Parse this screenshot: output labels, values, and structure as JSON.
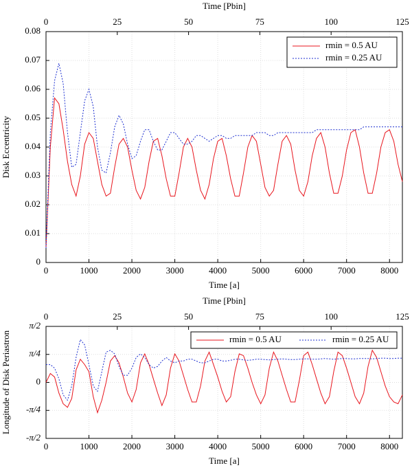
{
  "chart_data": [
    {
      "type": "line",
      "xlabel": "Time [a]",
      "ylabel": "Disk Eccentricity",
      "top_axis": {
        "label": "Time [Pbin]",
        "lim": [
          0,
          125
        ],
        "ticks": [
          0,
          25,
          50,
          75,
          100,
          125
        ]
      },
      "xlim": [
        0,
        8300
      ],
      "xticks": [
        0,
        1000,
        2000,
        3000,
        4000,
        5000,
        6000,
        7000,
        8000
      ],
      "ylim": [
        0,
        0.08
      ],
      "yticks": [
        0,
        0.01,
        0.02,
        0.03,
        0.04,
        0.05,
        0.06,
        0.07,
        0.08
      ],
      "grid": true,
      "legend": "upper right",
      "legend_layout": "vertical",
      "x": [
        0,
        100,
        200,
        300,
        400,
        500,
        600,
        700,
        800,
        900,
        1000,
        1100,
        1200,
        1300,
        1400,
        1500,
        1600,
        1700,
        1800,
        1900,
        2000,
        2100,
        2200,
        2300,
        2400,
        2500,
        2600,
        2700,
        2800,
        2900,
        3000,
        3100,
        3200,
        3300,
        3400,
        3500,
        3600,
        3700,
        3800,
        3900,
        4000,
        4100,
        4200,
        4300,
        4400,
        4500,
        4600,
        4700,
        4800,
        4900,
        5000,
        5100,
        5200,
        5300,
        5400,
        5500,
        5600,
        5700,
        5800,
        5900,
        6000,
        6100,
        6200,
        6300,
        6400,
        6500,
        6600,
        6700,
        6800,
        6900,
        7000,
        7100,
        7200,
        7300,
        7400,
        7500,
        7600,
        7700,
        7800,
        7900,
        8000,
        8100,
        8200,
        8300
      ],
      "series": [
        {
          "name": "rmin = 0.5 AU",
          "color": "#e8141c",
          "linestyle": "solid",
          "values": [
            0.005,
            0.04,
            0.057,
            0.055,
            0.046,
            0.035,
            0.027,
            0.023,
            0.03,
            0.041,
            0.045,
            0.043,
            0.035,
            0.027,
            0.023,
            0.024,
            0.033,
            0.041,
            0.043,
            0.04,
            0.032,
            0.025,
            0.022,
            0.026,
            0.035,
            0.042,
            0.043,
            0.037,
            0.029,
            0.023,
            0.023,
            0.031,
            0.04,
            0.043,
            0.04,
            0.032,
            0.025,
            0.022,
            0.027,
            0.036,
            0.042,
            0.043,
            0.037,
            0.029,
            0.023,
            0.023,
            0.031,
            0.04,
            0.044,
            0.042,
            0.034,
            0.026,
            0.023,
            0.025,
            0.034,
            0.042,
            0.044,
            0.041,
            0.032,
            0.025,
            0.023,
            0.028,
            0.037,
            0.043,
            0.045,
            0.04,
            0.031,
            0.024,
            0.024,
            0.03,
            0.039,
            0.045,
            0.046,
            0.04,
            0.031,
            0.024,
            0.024,
            0.031,
            0.04,
            0.045,
            0.046,
            0.042,
            0.034,
            0.028
          ]
        },
        {
          "name": "rmin = 0.25 AU",
          "color": "#1c2fd0",
          "linestyle": "dotted",
          "values": [
            0.005,
            0.045,
            0.063,
            0.069,
            0.062,
            0.045,
            0.033,
            0.034,
            0.045,
            0.056,
            0.06,
            0.054,
            0.04,
            0.032,
            0.031,
            0.038,
            0.047,
            0.051,
            0.048,
            0.041,
            0.036,
            0.037,
            0.042,
            0.046,
            0.046,
            0.042,
            0.039,
            0.039,
            0.042,
            0.045,
            0.045,
            0.043,
            0.041,
            0.041,
            0.042,
            0.044,
            0.044,
            0.043,
            0.042,
            0.043,
            0.044,
            0.044,
            0.043,
            0.043,
            0.044,
            0.044,
            0.044,
            0.044,
            0.044,
            0.045,
            0.045,
            0.045,
            0.044,
            0.044,
            0.045,
            0.045,
            0.045,
            0.045,
            0.045,
            0.045,
            0.045,
            0.045,
            0.045,
            0.046,
            0.046,
            0.046,
            0.046,
            0.046,
            0.046,
            0.046,
            0.046,
            0.046,
            0.046,
            0.046,
            0.047,
            0.047,
            0.047,
            0.047,
            0.047,
            0.047,
            0.047,
            0.047,
            0.047,
            0.047
          ]
        }
      ]
    },
    {
      "type": "line",
      "xlabel": "Time [a]",
      "ylabel": "Longitude of Disk Periastron",
      "top_axis": {
        "label": "Time [Pbin]",
        "lim": [
          0,
          125
        ],
        "ticks": [
          0,
          25,
          50,
          75,
          100,
          125
        ]
      },
      "xlim": [
        0,
        8300
      ],
      "xticks": [
        0,
        1000,
        2000,
        3000,
        4000,
        5000,
        6000,
        7000,
        8000
      ],
      "ylim": [
        -1.5708,
        1.5708
      ],
      "yticks": [
        {
          "value": -1.5708,
          "label": "-π/2"
        },
        {
          "value": -0.7854,
          "label": "-π/4"
        },
        0,
        {
          "value": 0.7854,
          "label": "π/4"
        },
        {
          "value": 1.5708,
          "label": "π/2"
        }
      ],
      "grid": true,
      "legend": "upper right",
      "legend_layout": "horizontal",
      "x": [
        0,
        100,
        200,
        300,
        400,
        500,
        600,
        700,
        800,
        900,
        1000,
        1100,
        1200,
        1300,
        1400,
        1500,
        1600,
        1700,
        1800,
        1900,
        2000,
        2100,
        2200,
        2300,
        2400,
        2500,
        2600,
        2700,
        2800,
        2900,
        3000,
        3100,
        3200,
        3300,
        3400,
        3500,
        3600,
        3700,
        3800,
        3900,
        4000,
        4100,
        4200,
        4300,
        4400,
        4500,
        4600,
        4700,
        4800,
        4900,
        5000,
        5100,
        5200,
        5300,
        5400,
        5500,
        5600,
        5700,
        5800,
        5900,
        6000,
        6100,
        6200,
        6300,
        6400,
        6500,
        6600,
        6700,
        6800,
        6900,
        7000,
        7100,
        7200,
        7300,
        7400,
        7500,
        7600,
        7700,
        7800,
        7900,
        8000,
        8100,
        8200,
        8300
      ],
      "series": [
        {
          "name": "rmin = 0.5 AU",
          "color": "#e8141c",
          "linestyle": "solid",
          "values": [
            0.0,
            0.25,
            0.15,
            -0.3,
            -0.6,
            -0.7,
            -0.45,
            0.35,
            0.65,
            0.5,
            0.3,
            -0.4,
            -0.85,
            -0.5,
            0.0,
            0.6,
            0.75,
            0.55,
            0.15,
            -0.3,
            -0.55,
            -0.2,
            0.55,
            0.8,
            0.5,
            0.1,
            -0.3,
            -0.65,
            -0.35,
            0.4,
            0.8,
            0.6,
            0.2,
            -0.2,
            -0.55,
            -0.55,
            -0.1,
            0.6,
            0.85,
            0.5,
            0.15,
            -0.25,
            -0.55,
            -0.4,
            0.3,
            0.8,
            0.75,
            0.4,
            0.0,
            -0.35,
            -0.6,
            -0.35,
            0.4,
            0.85,
            0.6,
            0.2,
            -0.2,
            -0.55,
            -0.55,
            0.05,
            0.75,
            0.85,
            0.5,
            0.1,
            -0.3,
            -0.6,
            -0.4,
            0.3,
            0.85,
            0.75,
            0.4,
            0.0,
            -0.4,
            -0.6,
            -0.3,
            0.45,
            0.9,
            0.7,
            0.3,
            -0.1,
            -0.4,
            -0.55,
            -0.6,
            -0.35
          ]
        },
        {
          "name": "rmin = 0.25 AU",
          "color": "#1c2fd0",
          "linestyle": "dotted",
          "values": [
            0.5,
            0.5,
            0.4,
            0.1,
            -0.35,
            -0.5,
            -0.1,
            0.7,
            1.2,
            1.05,
            0.5,
            -0.1,
            -0.25,
            0.3,
            0.85,
            0.9,
            0.8,
            0.45,
            0.2,
            0.2,
            0.4,
            0.7,
            0.8,
            0.7,
            0.5,
            0.4,
            0.45,
            0.6,
            0.7,
            0.6,
            0.55,
            0.6,
            0.6,
            0.65,
            0.65,
            0.6,
            0.55,
            0.55,
            0.6,
            0.65,
            0.65,
            0.6,
            0.6,
            0.62,
            0.65,
            0.65,
            0.63,
            0.62,
            0.63,
            0.65,
            0.65,
            0.64,
            0.63,
            0.64,
            0.65,
            0.66,
            0.65,
            0.64,
            0.64,
            0.65,
            0.66,
            0.66,
            0.65,
            0.65,
            0.66,
            0.67,
            0.66,
            0.65,
            0.66,
            0.67,
            0.67,
            0.66,
            0.66,
            0.67,
            0.67,
            0.67,
            0.66,
            0.67,
            0.68,
            0.68,
            0.67,
            0.67,
            0.68,
            0.68
          ]
        }
      ]
    }
  ]
}
